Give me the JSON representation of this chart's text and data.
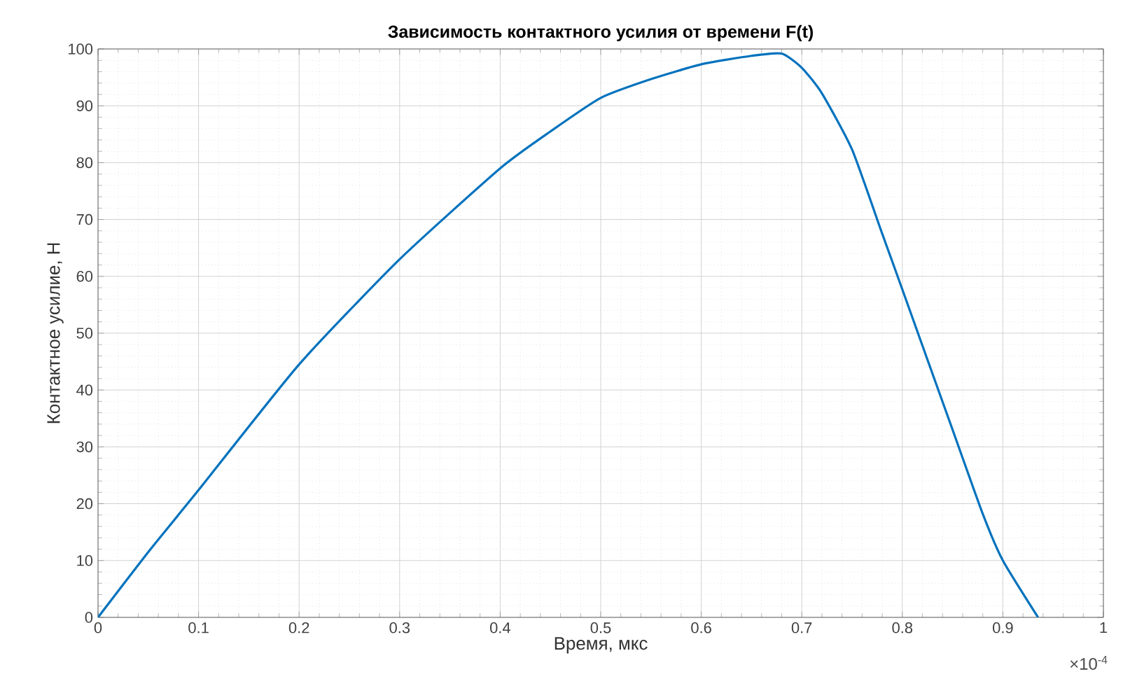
{
  "chart_data": {
    "type": "line",
    "title": "Зависимость контактного усилия от времени F(t)",
    "xlabel": "Время, мкс",
    "ylabel": "Контактное усилие, Н",
    "annotations": [
      "×10$^{-4}$"
    ],
    "x": [
      0,
      0.05,
      0.1,
      0.2,
      0.3,
      0.4,
      0.45,
      0.5,
      0.55,
      0.6,
      0.65,
      0.68,
      0.7,
      0.72,
      0.75,
      0.78,
      0.8,
      0.82,
      0.85,
      0.88,
      0.9,
      0.935
    ],
    "series": [
      {
        "color": "#0072bd",
        "values": [
          0,
          11.5,
          22.4,
          44.5,
          63,
          79,
          85.5,
          91.4,
          94.7,
          97.3,
          98.8,
          99.2,
          96.7,
          92.2,
          82.3,
          67.5,
          57.7,
          47.8,
          33,
          18.2,
          10,
          0
        ]
      }
    ],
    "xlim": [
      0,
      1
    ],
    "ylim": [
      0,
      100
    ],
    "xticks": [
      0,
      0.1,
      0.2,
      0.3,
      0.4,
      0.5,
      0.6,
      0.7,
      0.8,
      0.9,
      1
    ],
    "yticks": [
      0,
      10,
      20,
      30,
      40,
      50,
      60,
      70,
      80,
      90,
      100
    ],
    "grid": true,
    "marker": "none",
    "line_style": "solid"
  }
}
